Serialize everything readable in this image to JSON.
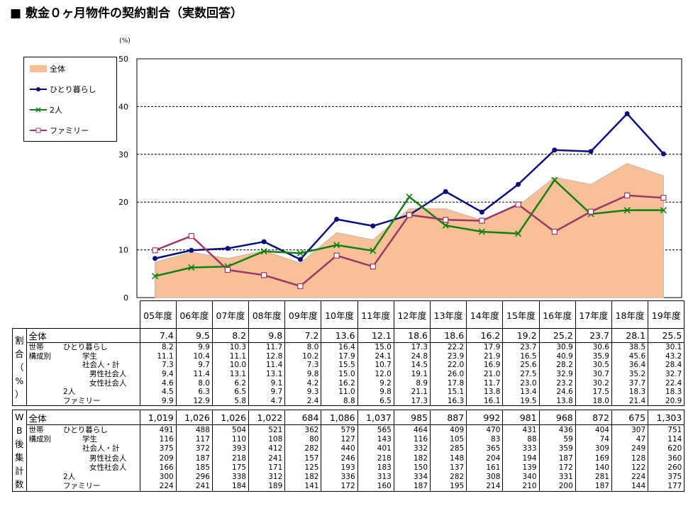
{
  "title": "■ 敷金０ヶ月物件の契約割合（実数回答）",
  "chart_data": {
    "type": "line",
    "categories": [
      "05年度",
      "06年度",
      "07年度",
      "08年度",
      "09年度",
      "10年度",
      "11年度",
      "12年度",
      "13年度",
      "14年度",
      "15年度",
      "16年度",
      "17年度",
      "18年度",
      "19年度"
    ],
    "ylabel": "(%)",
    "ylim": [
      0,
      50
    ],
    "yticks": [
      "0",
      "10",
      "20",
      "30",
      "40",
      "50"
    ],
    "grid": true,
    "legend_position": "top-left",
    "series": [
      {
        "name": "全体",
        "kind": "area",
        "color": "#f7c096",
        "values": [
          7.4,
          9.5,
          8.2,
          9.8,
          7.2,
          13.6,
          12.1,
          18.6,
          18.6,
          16.2,
          19.2,
          25.2,
          23.7,
          28.1,
          25.5
        ]
      },
      {
        "name": "ひとり暮らし",
        "kind": "line",
        "color": "#0b0f7a",
        "marker": "circle",
        "values": [
          8.2,
          9.9,
          10.3,
          11.7,
          8.0,
          16.4,
          15.0,
          17.3,
          22.2,
          17.9,
          23.7,
          30.9,
          30.6,
          38.5,
          30.1
        ]
      },
      {
        "name": "2人",
        "kind": "line",
        "color": "#118011",
        "marker": "x",
        "values": [
          4.5,
          6.3,
          6.5,
          9.7,
          9.3,
          11.0,
          9.8,
          21.1,
          15.1,
          13.8,
          13.4,
          24.6,
          17.5,
          18.3,
          18.3
        ]
      },
      {
        "name": "ファミリー",
        "kind": "line",
        "color": "#9b3866",
        "marker": "square",
        "values": [
          9.9,
          12.9,
          5.8,
          4.7,
          2.4,
          8.8,
          6.5,
          17.3,
          16.3,
          16.1,
          19.5,
          13.8,
          18.0,
          21.4,
          20.9
        ]
      }
    ]
  },
  "table": {
    "side_pct": [
      "割",
      "合",
      "（",
      "%",
      "）"
    ],
    "side_wb": [
      "W",
      "B",
      "後",
      "集",
      "計",
      "数"
    ],
    "group_label_1": "世帯",
    "group_label_2": "構成別",
    "pct_total": {
      "label": "全体",
      "values": [
        "7.4",
        "9.5",
        "8.2",
        "9.8",
        "7.2",
        "13.6",
        "12.1",
        "18.6",
        "18.6",
        "16.2",
        "19.2",
        "25.2",
        "23.7",
        "28.1",
        "25.5"
      ]
    },
    "pct_rows": [
      {
        "label": "ひとり暮らし",
        "indent": 1,
        "values": [
          "8.2",
          "9.9",
          "10.3",
          "11.7",
          "8.0",
          "16.4",
          "15.0",
          "17.3",
          "22.2",
          "17.9",
          "23.7",
          "30.9",
          "30.6",
          "38.5",
          "30.1"
        ]
      },
      {
        "label": "学生",
        "indent": 2,
        "values": [
          "11.1",
          "10.4",
          "11.1",
          "12.8",
          "10.2",
          "17.9",
          "24.1",
          "24.8",
          "23.9",
          "21.9",
          "16.5",
          "40.9",
          "35.9",
          "45.6",
          "43.2"
        ]
      },
      {
        "label": "社会人・計",
        "indent": 2,
        "values": [
          "7.3",
          "9.7",
          "10.0",
          "11.4",
          "7.3",
          "15.5",
          "10.7",
          "14.5",
          "22.0",
          "16.9",
          "25.6",
          "28.2",
          "30.5",
          "36.4",
          "28.4"
        ]
      },
      {
        "label": "男性社会人",
        "indent": 3,
        "values": [
          "9.4",
          "11.4",
          "13.1",
          "13.1",
          "9.8",
          "15.0",
          "12.0",
          "19.1",
          "26.0",
          "21.0",
          "27.5",
          "32.9",
          "30.7",
          "35.2",
          "32.7"
        ]
      },
      {
        "label": "女性社会人",
        "indent": 3,
        "values": [
          "4.6",
          "8.0",
          "6.2",
          "9.1",
          "4.2",
          "16.2",
          "9.2",
          "8.9",
          "17.8",
          "11.7",
          "23.0",
          "23.2",
          "30.2",
          "37.7",
          "22.4"
        ]
      },
      {
        "label": "2人",
        "indent": 0,
        "values": [
          "4.5",
          "6.3",
          "6.5",
          "9.7",
          "9.3",
          "11.0",
          "9.8",
          "21.1",
          "15.1",
          "13.8",
          "13.4",
          "24.6",
          "17.5",
          "18.3",
          "18.3"
        ]
      },
      {
        "label": "ファミリー",
        "indent": 0,
        "values": [
          "9.9",
          "12.9",
          "5.8",
          "4.7",
          "2.4",
          "8.8",
          "6.5",
          "17.3",
          "16.3",
          "16.1",
          "19.5",
          "13.8",
          "18.0",
          "21.4",
          "20.9"
        ]
      }
    ],
    "wb_total": {
      "label": "全体",
      "values": [
        "1,019",
        "1,026",
        "1,026",
        "1,022",
        "684",
        "1,086",
        "1,037",
        "985",
        "887",
        "992",
        "981",
        "968",
        "872",
        "675",
        "1,303"
      ]
    },
    "wb_rows": [
      {
        "label": "ひとり暮らし",
        "indent": 1,
        "values": [
          "491",
          "488",
          "504",
          "521",
          "362",
          "579",
          "565",
          "464",
          "409",
          "470",
          "431",
          "436",
          "404",
          "307",
          "751"
        ]
      },
      {
        "label": "学生",
        "indent": 2,
        "values": [
          "116",
          "117",
          "110",
          "108",
          "80",
          "127",
          "143",
          "116",
          "105",
          "83",
          "88",
          "59",
          "74",
          "47",
          "114"
        ]
      },
      {
        "label": "社会人・計",
        "indent": 2,
        "values": [
          "375",
          "372",
          "393",
          "412",
          "282",
          "440",
          "401",
          "332",
          "285",
          "365",
          "333",
          "359",
          "309",
          "249",
          "620"
        ]
      },
      {
        "label": "男性社会人",
        "indent": 3,
        "values": [
          "209",
          "187",
          "218",
          "241",
          "157",
          "246",
          "218",
          "182",
          "148",
          "204",
          "194",
          "187",
          "169",
          "128",
          "360"
        ]
      },
      {
        "label": "女性社会人",
        "indent": 3,
        "values": [
          "166",
          "185",
          "175",
          "171",
          "125",
          "193",
          "183",
          "150",
          "137",
          "161",
          "139",
          "172",
          "140",
          "122",
          "260"
        ]
      },
      {
        "label": "2人",
        "indent": 0,
        "values": [
          "300",
          "296",
          "338",
          "312",
          "182",
          "336",
          "313",
          "334",
          "282",
          "308",
          "340",
          "331",
          "281",
          "224",
          "375"
        ]
      },
      {
        "label": "ファミリー",
        "indent": 0,
        "values": [
          "224",
          "241",
          "184",
          "189",
          "141",
          "172",
          "160",
          "187",
          "195",
          "214",
          "210",
          "200",
          "187",
          "144",
          "177"
        ]
      }
    ]
  }
}
